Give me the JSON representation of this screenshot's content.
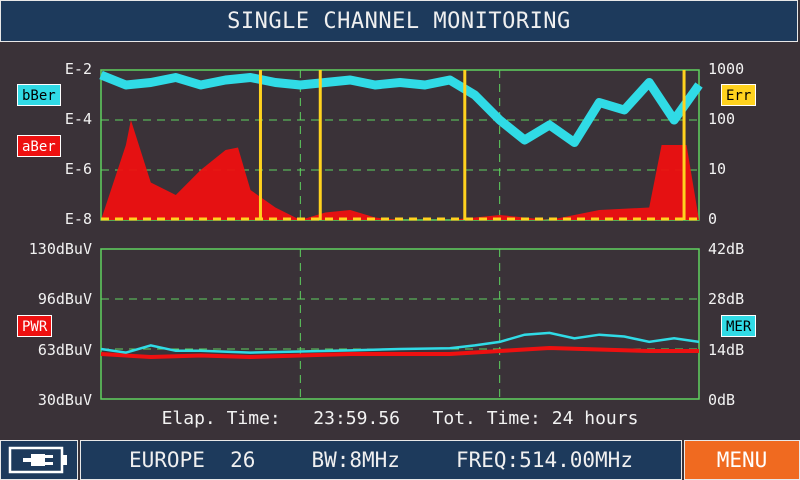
{
  "title": "SINGLE CHANNEL MONITORING",
  "colors": {
    "background": "#3a3238",
    "header_bg": "#1d3a5c",
    "grid": "#5fd25f",
    "ber_color": "#30dbe6",
    "aber_color": "#ee1010",
    "err_color": "#ffd21e",
    "pwr_color": "#ee1010",
    "mer_color": "#30dbe6",
    "menu_bg": "#f06a20"
  },
  "top_plot": {
    "left_ticks": [
      "E-2",
      "E-4",
      "E-6",
      "E-8"
    ],
    "right_ticks": [
      "1000",
      "100",
      "10",
      "0"
    ],
    "badges": {
      "bber": "bBer",
      "aber": "aBer",
      "err": "Err"
    }
  },
  "bottom_plot": {
    "left_ticks": [
      "130dBuV",
      "96dBuV",
      "63dBuV",
      "30dBuV"
    ],
    "right_ticks": [
      "42dB",
      "28dB",
      "14dB",
      "0dB"
    ],
    "badges": {
      "pwr": "PWR",
      "mer": "MER"
    }
  },
  "chart_data": {
    "type": "line",
    "x_range_hours": [
      0,
      24
    ],
    "bber_log10": [
      [
        0,
        -2.2
      ],
      [
        1,
        -2.6
      ],
      [
        2,
        -2.5
      ],
      [
        3,
        -2.3
      ],
      [
        4,
        -2.6
      ],
      [
        5,
        -2.4
      ],
      [
        6,
        -2.3
      ],
      [
        7,
        -2.5
      ],
      [
        8,
        -2.6
      ],
      [
        9,
        -2.5
      ],
      [
        10,
        -2.4
      ],
      [
        11,
        -2.6
      ],
      [
        12,
        -2.5
      ],
      [
        13,
        -2.6
      ],
      [
        14,
        -2.4
      ],
      [
        15,
        -3.0
      ],
      [
        16,
        -4.0
      ],
      [
        17,
        -4.8
      ],
      [
        18,
        -4.2
      ],
      [
        19,
        -4.9
      ],
      [
        20,
        -3.3
      ],
      [
        21,
        -3.6
      ],
      [
        22,
        -2.5
      ],
      [
        23,
        -4.0
      ],
      [
        24,
        -2.6
      ]
    ],
    "aber_log10": [
      [
        0,
        -8
      ],
      [
        1,
        -5.0
      ],
      [
        1.2,
        -4.0
      ],
      [
        2,
        -6.5
      ],
      [
        3,
        -7.0
      ],
      [
        4,
        -6.0
      ],
      [
        5,
        -5.2
      ],
      [
        5.5,
        -5.1
      ],
      [
        6,
        -6.8
      ],
      [
        7,
        -7.5
      ],
      [
        8,
        -8
      ],
      [
        9,
        -7.7
      ],
      [
        10,
        -7.6
      ],
      [
        11,
        -7.9
      ],
      [
        12,
        -8
      ],
      [
        14,
        -8
      ],
      [
        16,
        -7.8
      ],
      [
        18,
        -8
      ],
      [
        20,
        -7.6
      ],
      [
        22,
        -7.5
      ],
      [
        22.5,
        -5.0
      ],
      [
        23.5,
        -5.0
      ],
      [
        24,
        -8
      ]
    ],
    "err_events_hours": [
      6.4,
      8.8,
      14.6,
      23.4
    ],
    "pwr_dbuv": [
      [
        0,
        60
      ],
      [
        2,
        58
      ],
      [
        4,
        59
      ],
      [
        6,
        58
      ],
      [
        8,
        59
      ],
      [
        10,
        60
      ],
      [
        12,
        60
      ],
      [
        14,
        60
      ],
      [
        16,
        62
      ],
      [
        18,
        64
      ],
      [
        20,
        63
      ],
      [
        22,
        62
      ],
      [
        24,
        62
      ]
    ],
    "mer_db": [
      [
        0,
        14
      ],
      [
        1,
        13
      ],
      [
        2,
        15
      ],
      [
        3,
        13.5
      ],
      [
        4,
        13.5
      ],
      [
        6,
        13
      ],
      [
        8,
        13.3
      ],
      [
        10,
        13.6
      ],
      [
        12,
        14
      ],
      [
        14,
        14.2
      ],
      [
        15,
        15
      ],
      [
        16,
        16
      ],
      [
        17,
        18
      ],
      [
        18,
        18.5
      ],
      [
        19,
        17
      ],
      [
        20,
        18
      ],
      [
        21,
        17.5
      ],
      [
        22,
        16
      ],
      [
        23,
        17
      ],
      [
        24,
        16
      ]
    ],
    "pwr_range_dbuv": [
      30,
      130
    ],
    "mer_range_db": [
      0,
      42
    ]
  },
  "status": {
    "elapsed_label": "Elap. Time:",
    "elapsed_value": "23:59.56",
    "total_label": "Tot. Time:",
    "total_value": "24 hours"
  },
  "footer": {
    "region": "EUROPE",
    "channel": "26",
    "bandwidth": "BW:8MHz",
    "frequency": "FREQ:514.00MHz",
    "menu_label": "MENU",
    "battery_icon": "plug-battery-icon"
  }
}
